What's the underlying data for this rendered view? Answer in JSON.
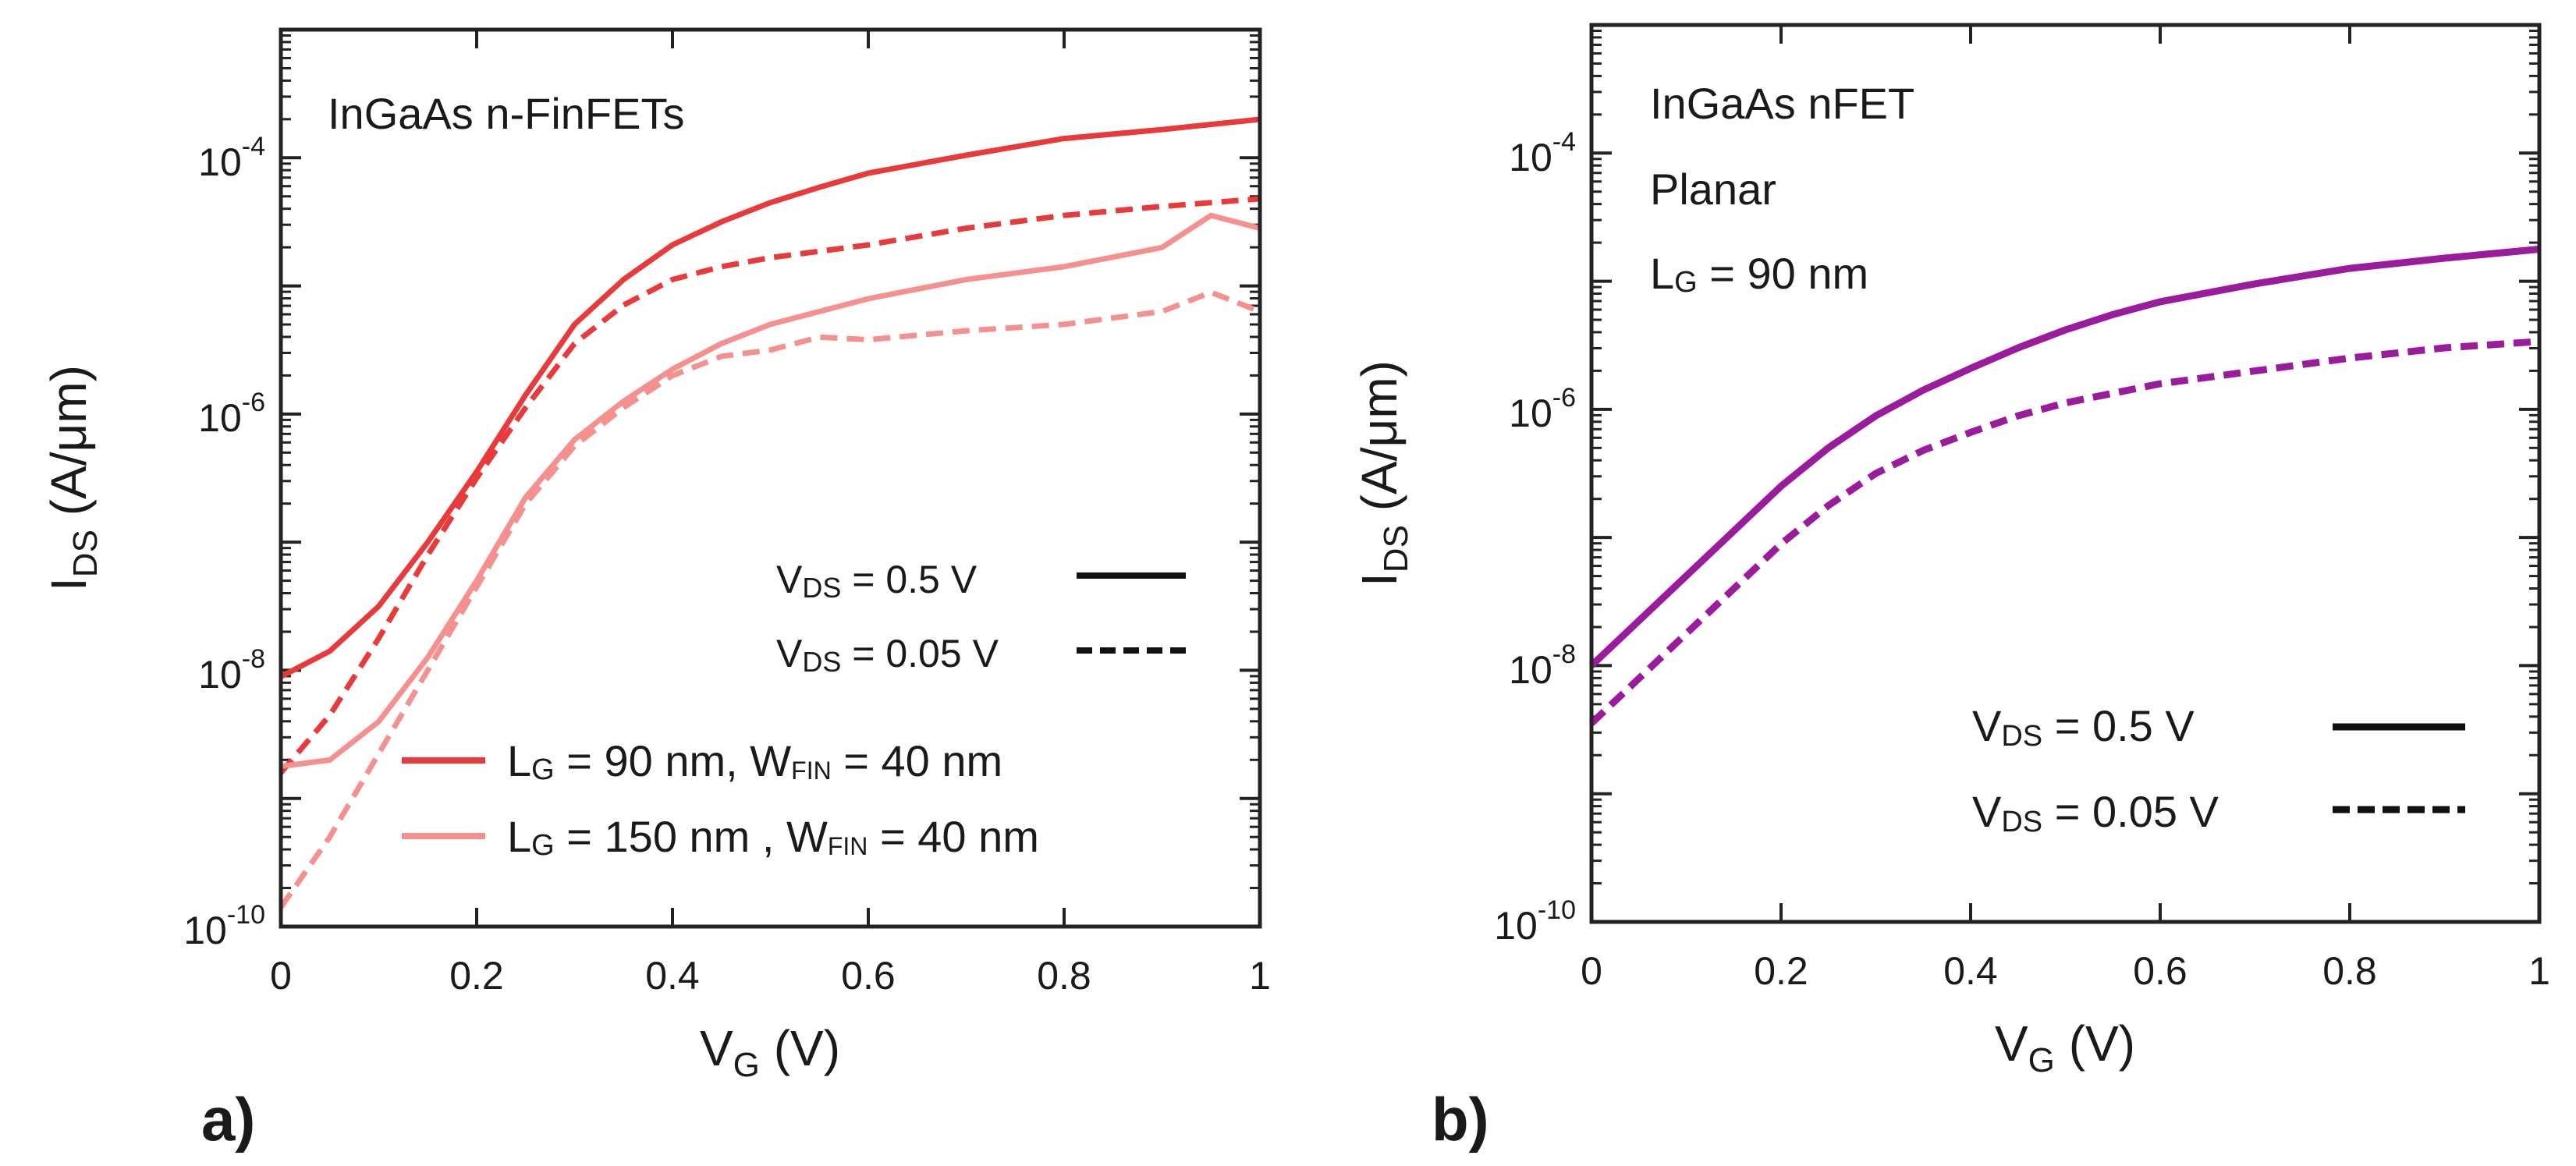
{
  "chart_data": [
    {
      "panel_label": "a)",
      "type": "line",
      "yscale": "log",
      "xlim": [
        0,
        1
      ],
      "ylim_exp": [
        -10,
        -3
      ],
      "x_ticks": [
        "0",
        "0.2",
        "0.4",
        "0.6",
        "0.8",
        "1"
      ],
      "y_ticks": [
        {
          "base": "10",
          "exp": "-10",
          "value": -10
        },
        {
          "base": "10",
          "exp": "-8",
          "value": -8
        },
        {
          "base": "10",
          "exp": "-6",
          "value": -6
        },
        {
          "base": "10",
          "exp": "-4",
          "value": -4
        }
      ],
      "xlabel": {
        "main": "V",
        "sub": "G",
        "rest": " (V)"
      },
      "ylabel": {
        "main": "I",
        "sub": "DS",
        "rest": " (A/μm)"
      },
      "annotations": [
        "InGaAs n-FinFETs"
      ],
      "style_legend": [
        {
          "prefix": "V",
          "sub": "DS",
          "rest": " = 0.5 V",
          "dash": "solid"
        },
        {
          "prefix": "V",
          "sub": "DS",
          "rest": " = 0.05 V",
          "dash": "dashed"
        }
      ],
      "color_legend": [
        {
          "parts": [
            "L",
            "G",
            " = 90 nm, W",
            "FIN",
            " = 40 nm"
          ],
          "color": "#e8393b"
        },
        {
          "parts": [
            "L",
            "G",
            " = 150 nm , W",
            "FIN",
            " = 40 nm"
          ],
          "color": "#f4918f"
        }
      ],
      "series": [
        {
          "name": "LG = 90 nm, VDS = 0.5 V",
          "color": "#e8393b",
          "dash": "solid",
          "x": [
            0,
            0.05,
            0.1,
            0.15,
            0.2,
            0.25,
            0.3,
            0.35,
            0.4,
            0.45,
            0.5,
            0.55,
            0.6,
            0.7,
            0.8,
            0.9,
            1.0
          ],
          "log_y": [
            -8.05,
            -7.85,
            -7.5,
            -7.0,
            -6.45,
            -5.85,
            -5.3,
            -4.95,
            -4.68,
            -4.5,
            -4.35,
            -4.23,
            -4.12,
            -3.98,
            -3.85,
            -3.78,
            -3.7
          ]
        },
        {
          "name": "LG = 90 nm, VDS = 0.05 V",
          "color": "#e8393b",
          "dash": "dashed",
          "x": [
            0,
            0.05,
            0.1,
            0.15,
            0.2,
            0.25,
            0.3,
            0.35,
            0.4,
            0.45,
            0.5,
            0.6,
            0.7,
            0.8,
            0.9,
            1.0
          ],
          "log_y": [
            -8.8,
            -8.35,
            -7.75,
            -7.1,
            -6.5,
            -5.95,
            -5.45,
            -5.15,
            -4.95,
            -4.85,
            -4.78,
            -4.68,
            -4.55,
            -4.45,
            -4.38,
            -4.32
          ]
        },
        {
          "name": "LG = 150 nm, VDS = 0.5 V",
          "color": "#f4918f",
          "dash": "solid",
          "x": [
            0,
            0.05,
            0.1,
            0.15,
            0.2,
            0.25,
            0.3,
            0.35,
            0.4,
            0.45,
            0.5,
            0.6,
            0.7,
            0.8,
            0.9,
            0.95,
            1.0
          ],
          "log_y": [
            -8.75,
            -8.7,
            -8.4,
            -7.9,
            -7.3,
            -6.65,
            -6.2,
            -5.9,
            -5.65,
            -5.45,
            -5.3,
            -5.1,
            -4.95,
            -4.85,
            -4.7,
            -4.45,
            -4.55
          ]
        },
        {
          "name": "LG = 150 nm, VDS = 0.05 V",
          "color": "#f4918f",
          "dash": "dashed",
          "x": [
            0,
            0.05,
            0.1,
            0.15,
            0.2,
            0.25,
            0.3,
            0.35,
            0.4,
            0.45,
            0.5,
            0.55,
            0.6,
            0.7,
            0.8,
            0.9,
            0.95,
            1.0
          ],
          "log_y": [
            -9.85,
            -9.3,
            -8.65,
            -8.0,
            -7.35,
            -6.7,
            -6.25,
            -5.95,
            -5.7,
            -5.55,
            -5.5,
            -5.4,
            -5.42,
            -5.35,
            -5.3,
            -5.2,
            -5.05,
            -5.2
          ]
        }
      ]
    },
    {
      "panel_label": "b)",
      "type": "line",
      "yscale": "log",
      "xlim": [
        0,
        1
      ],
      "ylim_exp": [
        -10,
        -3
      ],
      "x_ticks": [
        "0",
        "0.2",
        "0.4",
        "0.6",
        "0.8",
        "1"
      ],
      "y_ticks": [
        {
          "base": "10",
          "exp": "-10",
          "value": -10
        },
        {
          "base": "10",
          "exp": "-8",
          "value": -8
        },
        {
          "base": "10",
          "exp": "-6",
          "value": -6
        },
        {
          "base": "10",
          "exp": "-4",
          "value": -4
        }
      ],
      "xlabel": {
        "main": "V",
        "sub": "G",
        "rest": " (V)"
      },
      "ylabel": {
        "main": "I",
        "sub": "DS",
        "rest": " (A/μm)"
      },
      "annotations": [
        "InGaAs nFET",
        "Planar"
      ],
      "gate_length_note": {
        "prefix": "L",
        "sub": "G",
        "rest": " = 90 nm"
      },
      "style_legend": [
        {
          "prefix": "V",
          "sub": "DS",
          "rest": " = 0.5 V",
          "dash": "solid"
        },
        {
          "prefix": "V",
          "sub": "DS",
          "rest": " = 0.05 V",
          "dash": "dashed"
        }
      ],
      "series": [
        {
          "name": "VDS = 0.5 V",
          "color": "#9a1b9c",
          "dash": "solid",
          "x": [
            0,
            0.05,
            0.1,
            0.15,
            0.2,
            0.25,
            0.3,
            0.35,
            0.4,
            0.45,
            0.5,
            0.55,
            0.6,
            0.7,
            0.8,
            0.9,
            1.0
          ],
          "log_y": [
            -8.0,
            -7.65,
            -7.3,
            -6.95,
            -6.6,
            -6.3,
            -6.05,
            -5.85,
            -5.68,
            -5.52,
            -5.38,
            -5.26,
            -5.16,
            -5.02,
            -4.9,
            -4.82,
            -4.75
          ]
        },
        {
          "name": "VDS = 0.05 V",
          "color": "#9a1b9c",
          "dash": "dashed",
          "x": [
            0,
            0.05,
            0.1,
            0.15,
            0.2,
            0.25,
            0.3,
            0.35,
            0.4,
            0.45,
            0.5,
            0.6,
            0.7,
            0.8,
            0.9,
            1.0
          ],
          "log_y": [
            -8.45,
            -8.1,
            -7.75,
            -7.4,
            -7.05,
            -6.75,
            -6.5,
            -6.32,
            -6.18,
            -6.05,
            -5.95,
            -5.8,
            -5.7,
            -5.6,
            -5.52,
            -5.47
          ]
        }
      ]
    }
  ]
}
